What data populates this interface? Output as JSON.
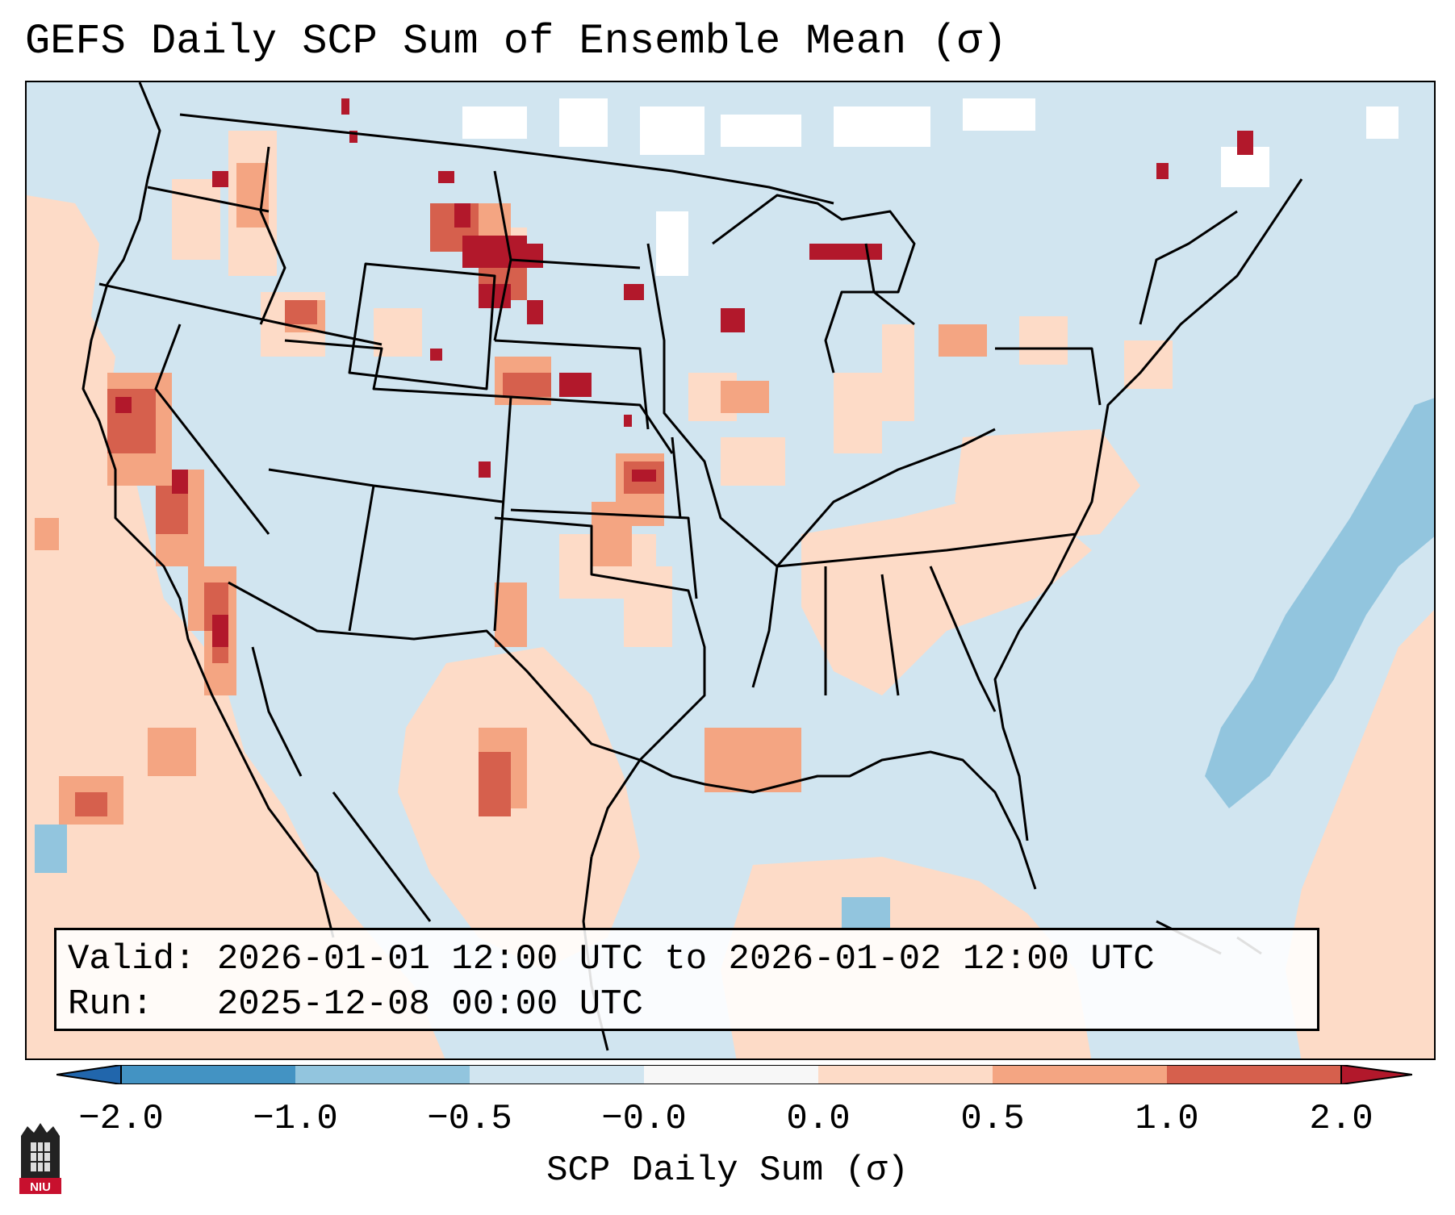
{
  "title": "GEFS Daily SCP Sum of Ensemble Mean (σ)",
  "valid_label": "Valid:",
  "valid_value": "2026-01-01 12:00 UTC to 2026-01-02 12:00 UTC",
  "run_label": "Run:",
  "run_value": "2025-12-08 00:00 UTC",
  "colorbar": {
    "label": "SCP Daily Sum (σ)",
    "ticks": [
      "−2.0",
      "−1.0",
      "−0.5",
      "−0.0",
      "0.0",
      "0.5",
      "1.0",
      "2.0"
    ],
    "colors": [
      "#4393c3",
      "#92c5de",
      "#d1e5f0",
      "#f7f7f7",
      "#fddbc7",
      "#f4a582",
      "#d6604d"
    ],
    "under_color": "#2166ac",
    "over_color": "#b2182b"
  },
  "map_colors": {
    "ocean_far": "#fddbc7",
    "neutral": "#d1e5f0",
    "light_pos": "#fddbc7",
    "mid_pos": "#f4a582",
    "high_pos": "#d6604d",
    "max_pos": "#b2182b",
    "light_neg": "#92c5de",
    "white": "#ffffff"
  },
  "logo_text": "NIU"
}
